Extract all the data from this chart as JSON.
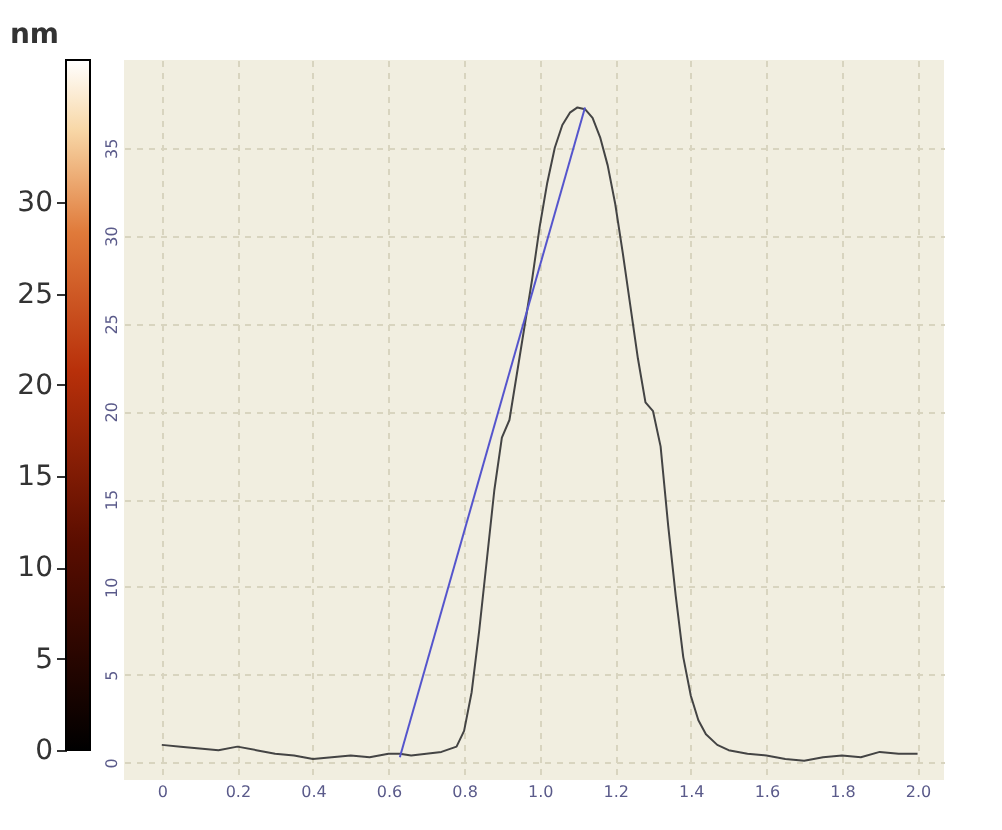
{
  "chart_data": {
    "type": "line",
    "xlim": [
      -0.1,
      2.07
    ],
    "ylim": [
      -1,
      40
    ],
    "xticks": [
      {
        "value": 0,
        "label": "0"
      },
      0.2,
      0.4,
      0.6,
      0.8,
      {
        "value": 1,
        "label": "1.0"
      },
      1.2,
      1.4,
      1.6,
      1.8,
      {
        "value": 2,
        "label": "2.0"
      }
    ],
    "yticks": [
      0,
      5,
      10,
      15,
      20,
      25,
      30,
      35
    ],
    "grid": true,
    "marker": "none",
    "line_style": "solid",
    "clabel": "nm",
    "clim": [
      0,
      37.8
    ],
    "cticks": [
      0,
      5,
      10,
      15,
      20,
      25,
      30
    ],
    "series": [
      {
        "color": "#444444",
        "x": [
          0,
          0.05,
          0.1,
          0.15,
          0.2,
          0.25,
          0.3,
          0.35,
          0.4,
          0.45,
          0.5,
          0.55,
          0.6,
          0.63,
          0.66,
          0.7,
          0.74,
          0.78,
          0.8,
          0.82,
          0.84,
          0.86,
          0.88,
          0.9,
          0.92,
          0.95,
          0.98,
          1.0,
          1.02,
          1.04,
          1.06,
          1.08,
          1.1,
          1.12,
          1.14,
          1.16,
          1.18,
          1.2,
          1.22,
          1.24,
          1.26,
          1.28,
          1.3,
          1.32,
          1.34,
          1.36,
          1.38,
          1.4,
          1.42,
          1.44,
          1.47,
          1.5,
          1.55,
          1.6,
          1.65,
          1.7,
          1.75,
          1.8,
          1.85,
          1.9,
          1.95,
          2.0
        ],
        "values": [
          1.0,
          0.9,
          0.8,
          0.7,
          0.9,
          0.7,
          0.5,
          0.4,
          0.2,
          0.3,
          0.4,
          0.3,
          0.5,
          0.5,
          0.4,
          0.5,
          0.6,
          0.9,
          1.8,
          4,
          7.5,
          11.5,
          15.5,
          18.5,
          19.5,
          23.5,
          27.5,
          30.5,
          33,
          35,
          36.3,
          37,
          37.3,
          37.2,
          36.7,
          35.6,
          34,
          31.8,
          29,
          26,
          23,
          20.5,
          20,
          18,
          13.5,
          9.5,
          6,
          3.8,
          2.4,
          1.6,
          1.0,
          0.7,
          0.5,
          0.4,
          0.2,
          0.1,
          0.3,
          0.4,
          0.3,
          0.6,
          0.5,
          0.5
        ]
      },
      {
        "color": "#5555cc",
        "x": [
          0.63,
          1.12
        ],
        "values": [
          0.3,
          37.3
        ]
      }
    ]
  }
}
